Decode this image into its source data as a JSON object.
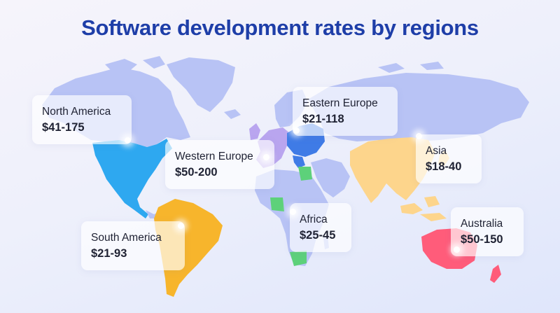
{
  "title": "Software development rates by regions",
  "colors": {
    "title": "#1e3ea8",
    "map_base": "#b8c3f5",
    "north_america": "#2ea8f0",
    "south_america": "#f7b52c",
    "western_europe": "#b9a5ef",
    "eastern_europe": "#3f7be6",
    "africa": "#5dd17a",
    "asia": "#fdd58c",
    "australia": "#ff5c7a"
  },
  "regions": [
    {
      "id": "north_america",
      "name": "North America",
      "rate": "$41-175"
    },
    {
      "id": "western_europe",
      "name": "Western Europe",
      "rate": "$50-200"
    },
    {
      "id": "eastern_europe",
      "name": "Eastern Europe",
      "rate": "$21-118"
    },
    {
      "id": "asia",
      "name": "Asia",
      "rate": "$18-40"
    },
    {
      "id": "africa",
      "name": "Africa",
      "rate": "$25-45"
    },
    {
      "id": "south_america",
      "name": "South America",
      "rate": "$21-93"
    },
    {
      "id": "australia",
      "name": "Australia",
      "rate": "$50-150"
    }
  ]
}
